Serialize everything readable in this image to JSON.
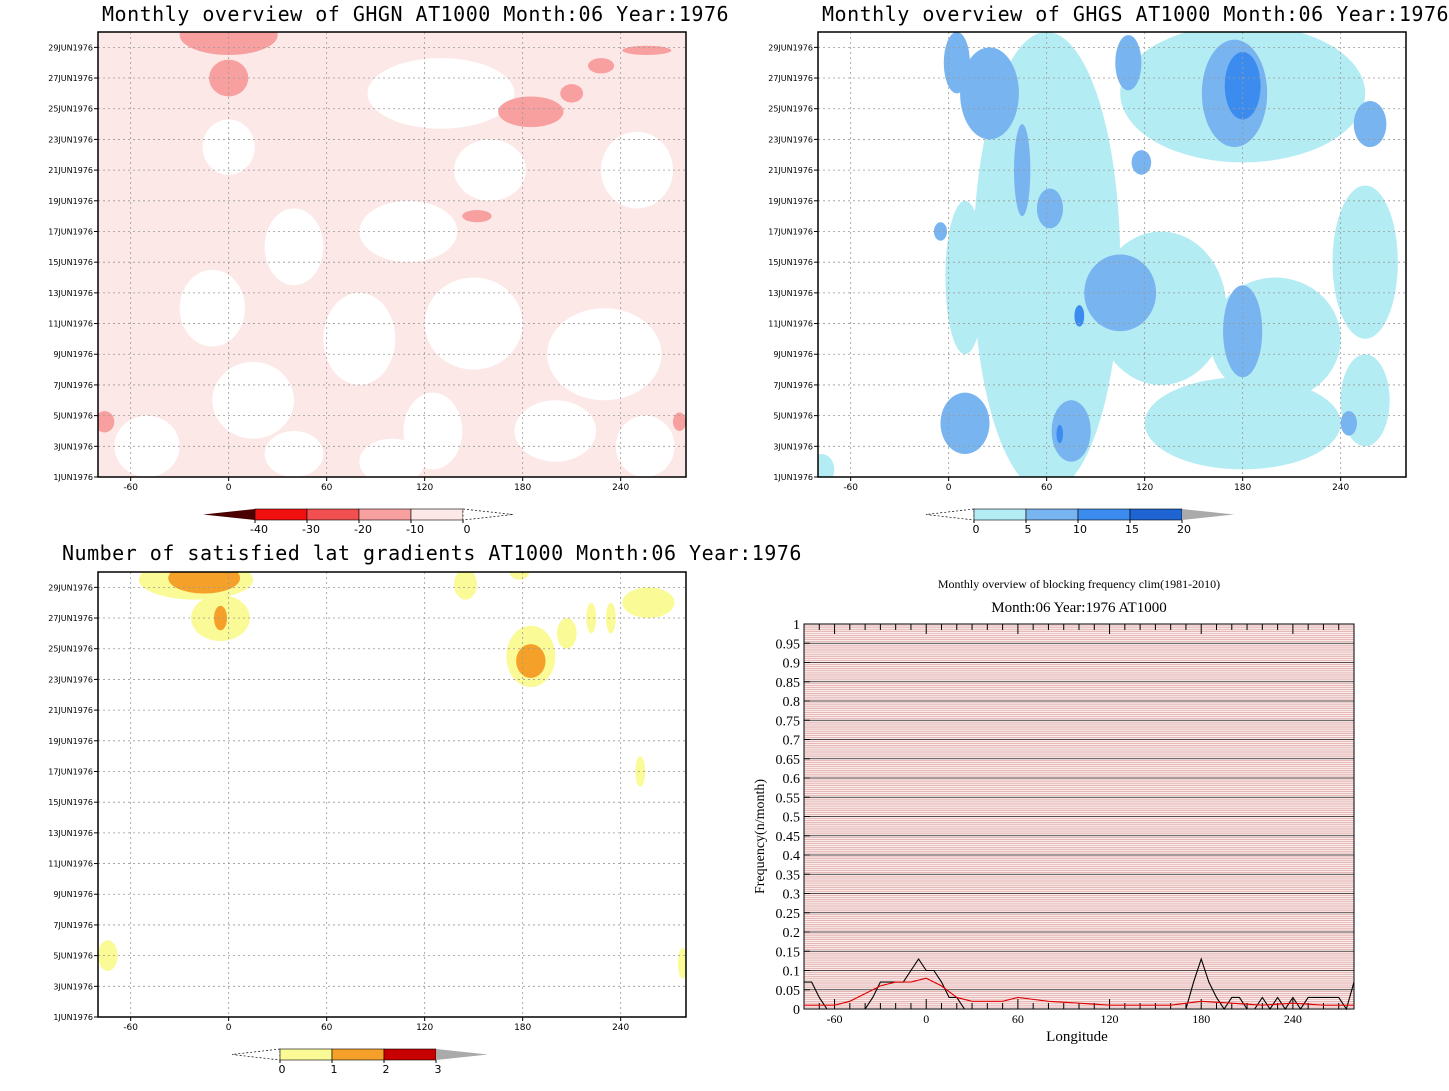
{
  "panels": {
    "ghgn": {
      "title": "Monthly overview of GHGN AT1000 Month:06 Year:1976"
    },
    "ghgs": {
      "title": "Monthly overview of GHGS AT1000 Month:06 Year:1976"
    },
    "lat": {
      "title": "Number of satisfied lat gradients AT1000 Month:06 Year:1976"
    },
    "freq": {
      "title": "Monthly overview of blocking frequency clim(1981-2010)",
      "subtitle": "Month:06 Year:1976  AT1000"
    }
  },
  "chart_data": [
    {
      "type": "heatmap",
      "title": "Monthly overview of GHGN AT1000 Month:06 Year:1976",
      "x_ticks": [
        -60,
        0,
        60,
        120,
        180,
        240
      ],
      "xlim": [
        -80,
        280
      ],
      "y_ticks": [
        "1JUN1976",
        "3JUN1976",
        "5JUN1976",
        "7JUN1976",
        "9JUN1976",
        "11JUN1976",
        "13JUN1976",
        "15JUN1976",
        "17JUN1976",
        "19JUN1976",
        "21JUN1976",
        "23JUN1976",
        "25JUN1976",
        "27JUN1976",
        "29JUN1976"
      ],
      "ylim": [
        1,
        30
      ],
      "colorbar": {
        "labels": [
          "-40",
          "-30",
          "-20",
          "-10",
          "0"
        ],
        "colors": [
          "#4a0000",
          "#f01010",
          "#f05050",
          "#f8a0a0",
          "#fde8e8"
        ]
      },
      "background": "#fde8e8",
      "regions": [
        {
          "level": 0,
          "lon": 0,
          "day": 22.5,
          "rx": 16,
          "ry": 1.8
        },
        {
          "level": 0,
          "lon": 40,
          "day": 16,
          "rx": 18,
          "ry": 2.5
        },
        {
          "level": 0,
          "lon": 110,
          "day": 17,
          "rx": 30,
          "ry": 2
        },
        {
          "level": 0,
          "lon": 130,
          "day": 26,
          "rx": 45,
          "ry": 2.3
        },
        {
          "level": 0,
          "lon": 160,
          "day": 21,
          "rx": 22,
          "ry": 2
        },
        {
          "level": 0,
          "lon": 250,
          "day": 21,
          "rx": 22,
          "ry": 2.5
        },
        {
          "level": 0,
          "lon": 230,
          "day": 9,
          "rx": 35,
          "ry": 3
        },
        {
          "level": 0,
          "lon": 80,
          "day": 10,
          "rx": 22,
          "ry": 3
        },
        {
          "level": 0,
          "lon": 150,
          "day": 11,
          "rx": 30,
          "ry": 3
        },
        {
          "level": 0,
          "lon": 15,
          "day": 6,
          "rx": 25,
          "ry": 2.5
        },
        {
          "level": 0,
          "lon": 125,
          "day": 4,
          "rx": 18,
          "ry": 2.5
        },
        {
          "level": 0,
          "lon": 200,
          "day": 4,
          "rx": 25,
          "ry": 2
        },
        {
          "level": 0,
          "lon": -50,
          "day": 3,
          "rx": 20,
          "ry": 2
        },
        {
          "level": 0,
          "lon": -10,
          "day": 12,
          "rx": 20,
          "ry": 2.5
        },
        {
          "level": 0,
          "lon": 100,
          "day": 2,
          "rx": 20,
          "ry": 1.5
        },
        {
          "level": 0,
          "lon": 255,
          "day": 3,
          "rx": 18,
          "ry": 2
        },
        {
          "level": 0,
          "lon": 40,
          "day": 2.5,
          "rx": 18,
          "ry": 1.5
        },
        {
          "level": -10,
          "lon": 0,
          "day": 29.8,
          "rx": 30,
          "ry": 1.3
        },
        {
          "level": -10,
          "lon": 0,
          "day": 27,
          "rx": 12,
          "ry": 1.2
        },
        {
          "level": -10,
          "lon": 185,
          "day": 24.8,
          "rx": 20,
          "ry": 1
        },
        {
          "level": -10,
          "lon": 210,
          "day": 26,
          "rx": 7,
          "ry": 0.6
        },
        {
          "level": -10,
          "lon": 228,
          "day": 27.8,
          "rx": 8,
          "ry": 0.5
        },
        {
          "level": -10,
          "lon": 256,
          "day": 28.8,
          "rx": 15,
          "ry": 0.3
        },
        {
          "level": -10,
          "lon": 152,
          "day": 18,
          "rx": 9,
          "ry": 0.4
        },
        {
          "level": -10,
          "lon": -76,
          "day": 4.6,
          "rx": 6,
          "ry": 0.7
        },
        {
          "level": -10,
          "lon": 276,
          "day": 4.6,
          "rx": 4,
          "ry": 0.6
        }
      ]
    },
    {
      "type": "heatmap",
      "title": "Monthly overview of GHGS AT1000 Month:06 Year:1976",
      "x_ticks": [
        -60,
        0,
        60,
        120,
        180,
        240
      ],
      "xlim": [
        -80,
        280
      ],
      "y_ticks": [
        "1JUN1976",
        "3JUN1976",
        "5JUN1976",
        "7JUN1976",
        "9JUN1976",
        "11JUN1976",
        "13JUN1976",
        "15JUN1976",
        "17JUN1976",
        "19JUN1976",
        "21JUN1976",
        "23JUN1976",
        "25JUN1976",
        "27JUN1976",
        "29JUN1976"
      ],
      "ylim": [
        1,
        30
      ],
      "colorbar": {
        "labels": [
          "0",
          "5",
          "10",
          "15",
          "20"
        ],
        "colors": [
          "#b4ecf4",
          "#78b4f0",
          "#3c8cf0",
          "#1e64d2",
          "#aaaaaa"
        ]
      },
      "background": "#ffffff",
      "regions": [
        {
          "level": 0,
          "lon": 60,
          "day": 15,
          "rx": 45,
          "ry": 15
        },
        {
          "level": 0,
          "lon": 180,
          "day": 26,
          "rx": 75,
          "ry": 4.5
        },
        {
          "level": 0,
          "lon": 130,
          "day": 12,
          "rx": 40,
          "ry": 5
        },
        {
          "level": 0,
          "lon": 200,
          "day": 10,
          "rx": 40,
          "ry": 4
        },
        {
          "level": 0,
          "lon": 180,
          "day": 4.5,
          "rx": 60,
          "ry": 3
        },
        {
          "level": 0,
          "lon": 255,
          "day": 15,
          "rx": 20,
          "ry": 5
        },
        {
          "level": 0,
          "lon": 255,
          "day": 6,
          "rx": 15,
          "ry": 3
        },
        {
          "level": 0,
          "lon": -78,
          "day": 1.5,
          "rx": 8,
          "ry": 1
        },
        {
          "level": 0,
          "lon": 10,
          "day": 14,
          "rx": 12,
          "ry": 5
        },
        {
          "level": 5,
          "lon": 25,
          "day": 26,
          "rx": 18,
          "ry": 3
        },
        {
          "level": 5,
          "lon": 5,
          "day": 28,
          "rx": 8,
          "ry": 2
        },
        {
          "level": 5,
          "lon": 45,
          "day": 21,
          "rx": 5,
          "ry": 3
        },
        {
          "level": 5,
          "lon": 62,
          "day": 18.5,
          "rx": 8,
          "ry": 1.3
        },
        {
          "level": 5,
          "lon": 105,
          "day": 13,
          "rx": 22,
          "ry": 2.5
        },
        {
          "level": 5,
          "lon": 110,
          "day": 28,
          "rx": 8,
          "ry": 1.8
        },
        {
          "level": 5,
          "lon": 118,
          "day": 21.5,
          "rx": 6,
          "ry": 0.8
        },
        {
          "level": 5,
          "lon": 175,
          "day": 26,
          "rx": 20,
          "ry": 3.5
        },
        {
          "level": 5,
          "lon": 180,
          "day": 10.5,
          "rx": 12,
          "ry": 3
        },
        {
          "level": 5,
          "lon": 10,
          "day": 4.5,
          "rx": 15,
          "ry": 2
        },
        {
          "level": 5,
          "lon": 75,
          "day": 4,
          "rx": 12,
          "ry": 2
        },
        {
          "level": 5,
          "lon": 258,
          "day": 24,
          "rx": 10,
          "ry": 1.5
        },
        {
          "level": 5,
          "lon": 245,
          "day": 4.5,
          "rx": 5,
          "ry": 0.8
        },
        {
          "level": 5,
          "lon": -5,
          "day": 17,
          "rx": 4,
          "ry": 0.6
        },
        {
          "level": 10,
          "lon": 180,
          "day": 26.5,
          "rx": 11,
          "ry": 2.2
        },
        {
          "level": 10,
          "lon": 80,
          "day": 11.5,
          "rx": 3,
          "ry": 0.7
        },
        {
          "level": 10,
          "lon": 68,
          "day": 3.8,
          "rx": 2,
          "ry": 0.6
        }
      ]
    },
    {
      "type": "heatmap",
      "title": "Number of satisfied lat gradients AT1000 Month:06 Year:1976",
      "x_ticks": [
        -60,
        0,
        60,
        120,
        180,
        240
      ],
      "xlim": [
        -80,
        280
      ],
      "y_ticks": [
        "1JUN1976",
        "3JUN1976",
        "5JUN1976",
        "7JUN1976",
        "9JUN1976",
        "11JUN1976",
        "13JUN1976",
        "15JUN1976",
        "17JUN1976",
        "19JUN1976",
        "21JUN1976",
        "23JUN1976",
        "25JUN1976",
        "27JUN1976",
        "29JUN1976"
      ],
      "ylim": [
        1,
        30
      ],
      "colorbar": {
        "labels": [
          "0",
          "1",
          "2",
          "3"
        ],
        "colors": [
          "#fafa96",
          "#f5a028",
          "#c80000",
          "#aaaaaa"
        ]
      },
      "background": "#ffffff",
      "regions": [
        {
          "level": 0,
          "lon": -20,
          "day": 29.5,
          "rx": 35,
          "ry": 1.3
        },
        {
          "level": 0,
          "lon": -5,
          "day": 27,
          "rx": 18,
          "ry": 1.5
        },
        {
          "level": 0,
          "lon": 145,
          "day": 29.2,
          "rx": 7,
          "ry": 1
        },
        {
          "level": 0,
          "lon": 178,
          "day": 30,
          "rx": 6,
          "ry": 0.5
        },
        {
          "level": 0,
          "lon": 185,
          "day": 24.5,
          "rx": 15,
          "ry": 2
        },
        {
          "level": 0,
          "lon": 207,
          "day": 26,
          "rx": 6,
          "ry": 1
        },
        {
          "level": 0,
          "lon": 222,
          "day": 27,
          "rx": 3,
          "ry": 1
        },
        {
          "level": 0,
          "lon": 234,
          "day": 27,
          "rx": 3,
          "ry": 1
        },
        {
          "level": 0,
          "lon": 257,
          "day": 28,
          "rx": 16,
          "ry": 1
        },
        {
          "level": 0,
          "lon": 252,
          "day": 17,
          "rx": 3,
          "ry": 1
        },
        {
          "level": 0,
          "lon": -74,
          "day": 5,
          "rx": 6,
          "ry": 1
        },
        {
          "level": 0,
          "lon": 278,
          "day": 4.5,
          "rx": 3,
          "ry": 1
        },
        {
          "level": 1,
          "lon": -15,
          "day": 29.6,
          "rx": 22,
          "ry": 1
        },
        {
          "level": 1,
          "lon": -5,
          "day": 27,
          "rx": 4,
          "ry": 0.8
        },
        {
          "level": 1,
          "lon": 185,
          "day": 24.2,
          "rx": 9,
          "ry": 1.1
        }
      ]
    },
    {
      "type": "line",
      "title": "Monthly overview of blocking frequency clim(1981-2010)",
      "subtitle": "Month:06 Year:1976  AT1000",
      "xlabel": "Longitude",
      "ylabel": "Frequency(n/month)",
      "x_ticks": [
        -60,
        0,
        60,
        120,
        180,
        240
      ],
      "xlim": [
        -80,
        280
      ],
      "ylim": [
        0,
        1
      ],
      "y_ticks": [
        "0",
        "0.05",
        "0.1",
        "0.15",
        "0.2",
        "0.25",
        "0.3",
        "0.35",
        "0.4",
        "0.45",
        "0.5",
        "0.55",
        "0.6",
        "0.65",
        "0.7",
        "0.75",
        "0.8",
        "0.85",
        "0.9",
        "0.95",
        "1"
      ],
      "series": [
        {
          "color": "#000000",
          "x": [
            -80,
            -75,
            -70,
            -65,
            -60,
            -55,
            -50,
            -45,
            -40,
            -35,
            -30,
            -25,
            -20,
            -15,
            -10,
            -5,
            0,
            5,
            10,
            15,
            20,
            25,
            30,
            170,
            175,
            180,
            185,
            190,
            195,
            200,
            205,
            210,
            215,
            220,
            225,
            230,
            235,
            240,
            245,
            250,
            255,
            260,
            265,
            270,
            275,
            280
          ],
          "y": [
            0.07,
            0.07,
            0.03,
            0,
            0,
            0,
            0,
            0,
            0,
            0.03,
            0.07,
            0.07,
            0.07,
            0.07,
            0.1,
            0.13,
            0.1,
            0.1,
            0.07,
            0.03,
            0.03,
            0,
            0,
            0,
            0.07,
            0.13,
            0.07,
            0.03,
            0,
            0.03,
            0.03,
            0,
            0,
            0.03,
            0,
            0.03,
            0,
            0.03,
            0,
            0.03,
            0.03,
            0.03,
            0.03,
            0.03,
            0,
            0.07
          ]
        },
        {
          "color": "#e00000",
          "x": [
            -80,
            -70,
            -60,
            -50,
            -40,
            -30,
            -20,
            -10,
            0,
            10,
            20,
            30,
            40,
            50,
            60,
            70,
            80,
            100,
            120,
            140,
            160,
            180,
            200,
            220,
            240,
            260,
            280
          ],
          "y": [
            0.01,
            0.01,
            0.01,
            0.02,
            0.04,
            0.06,
            0.07,
            0.07,
            0.08,
            0.06,
            0.03,
            0.02,
            0.02,
            0.02,
            0.03,
            0.025,
            0.02,
            0.015,
            0.01,
            0.01,
            0.01,
            0.02,
            0.015,
            0.01,
            0.015,
            0.01,
            0.01
          ]
        }
      ]
    }
  ]
}
